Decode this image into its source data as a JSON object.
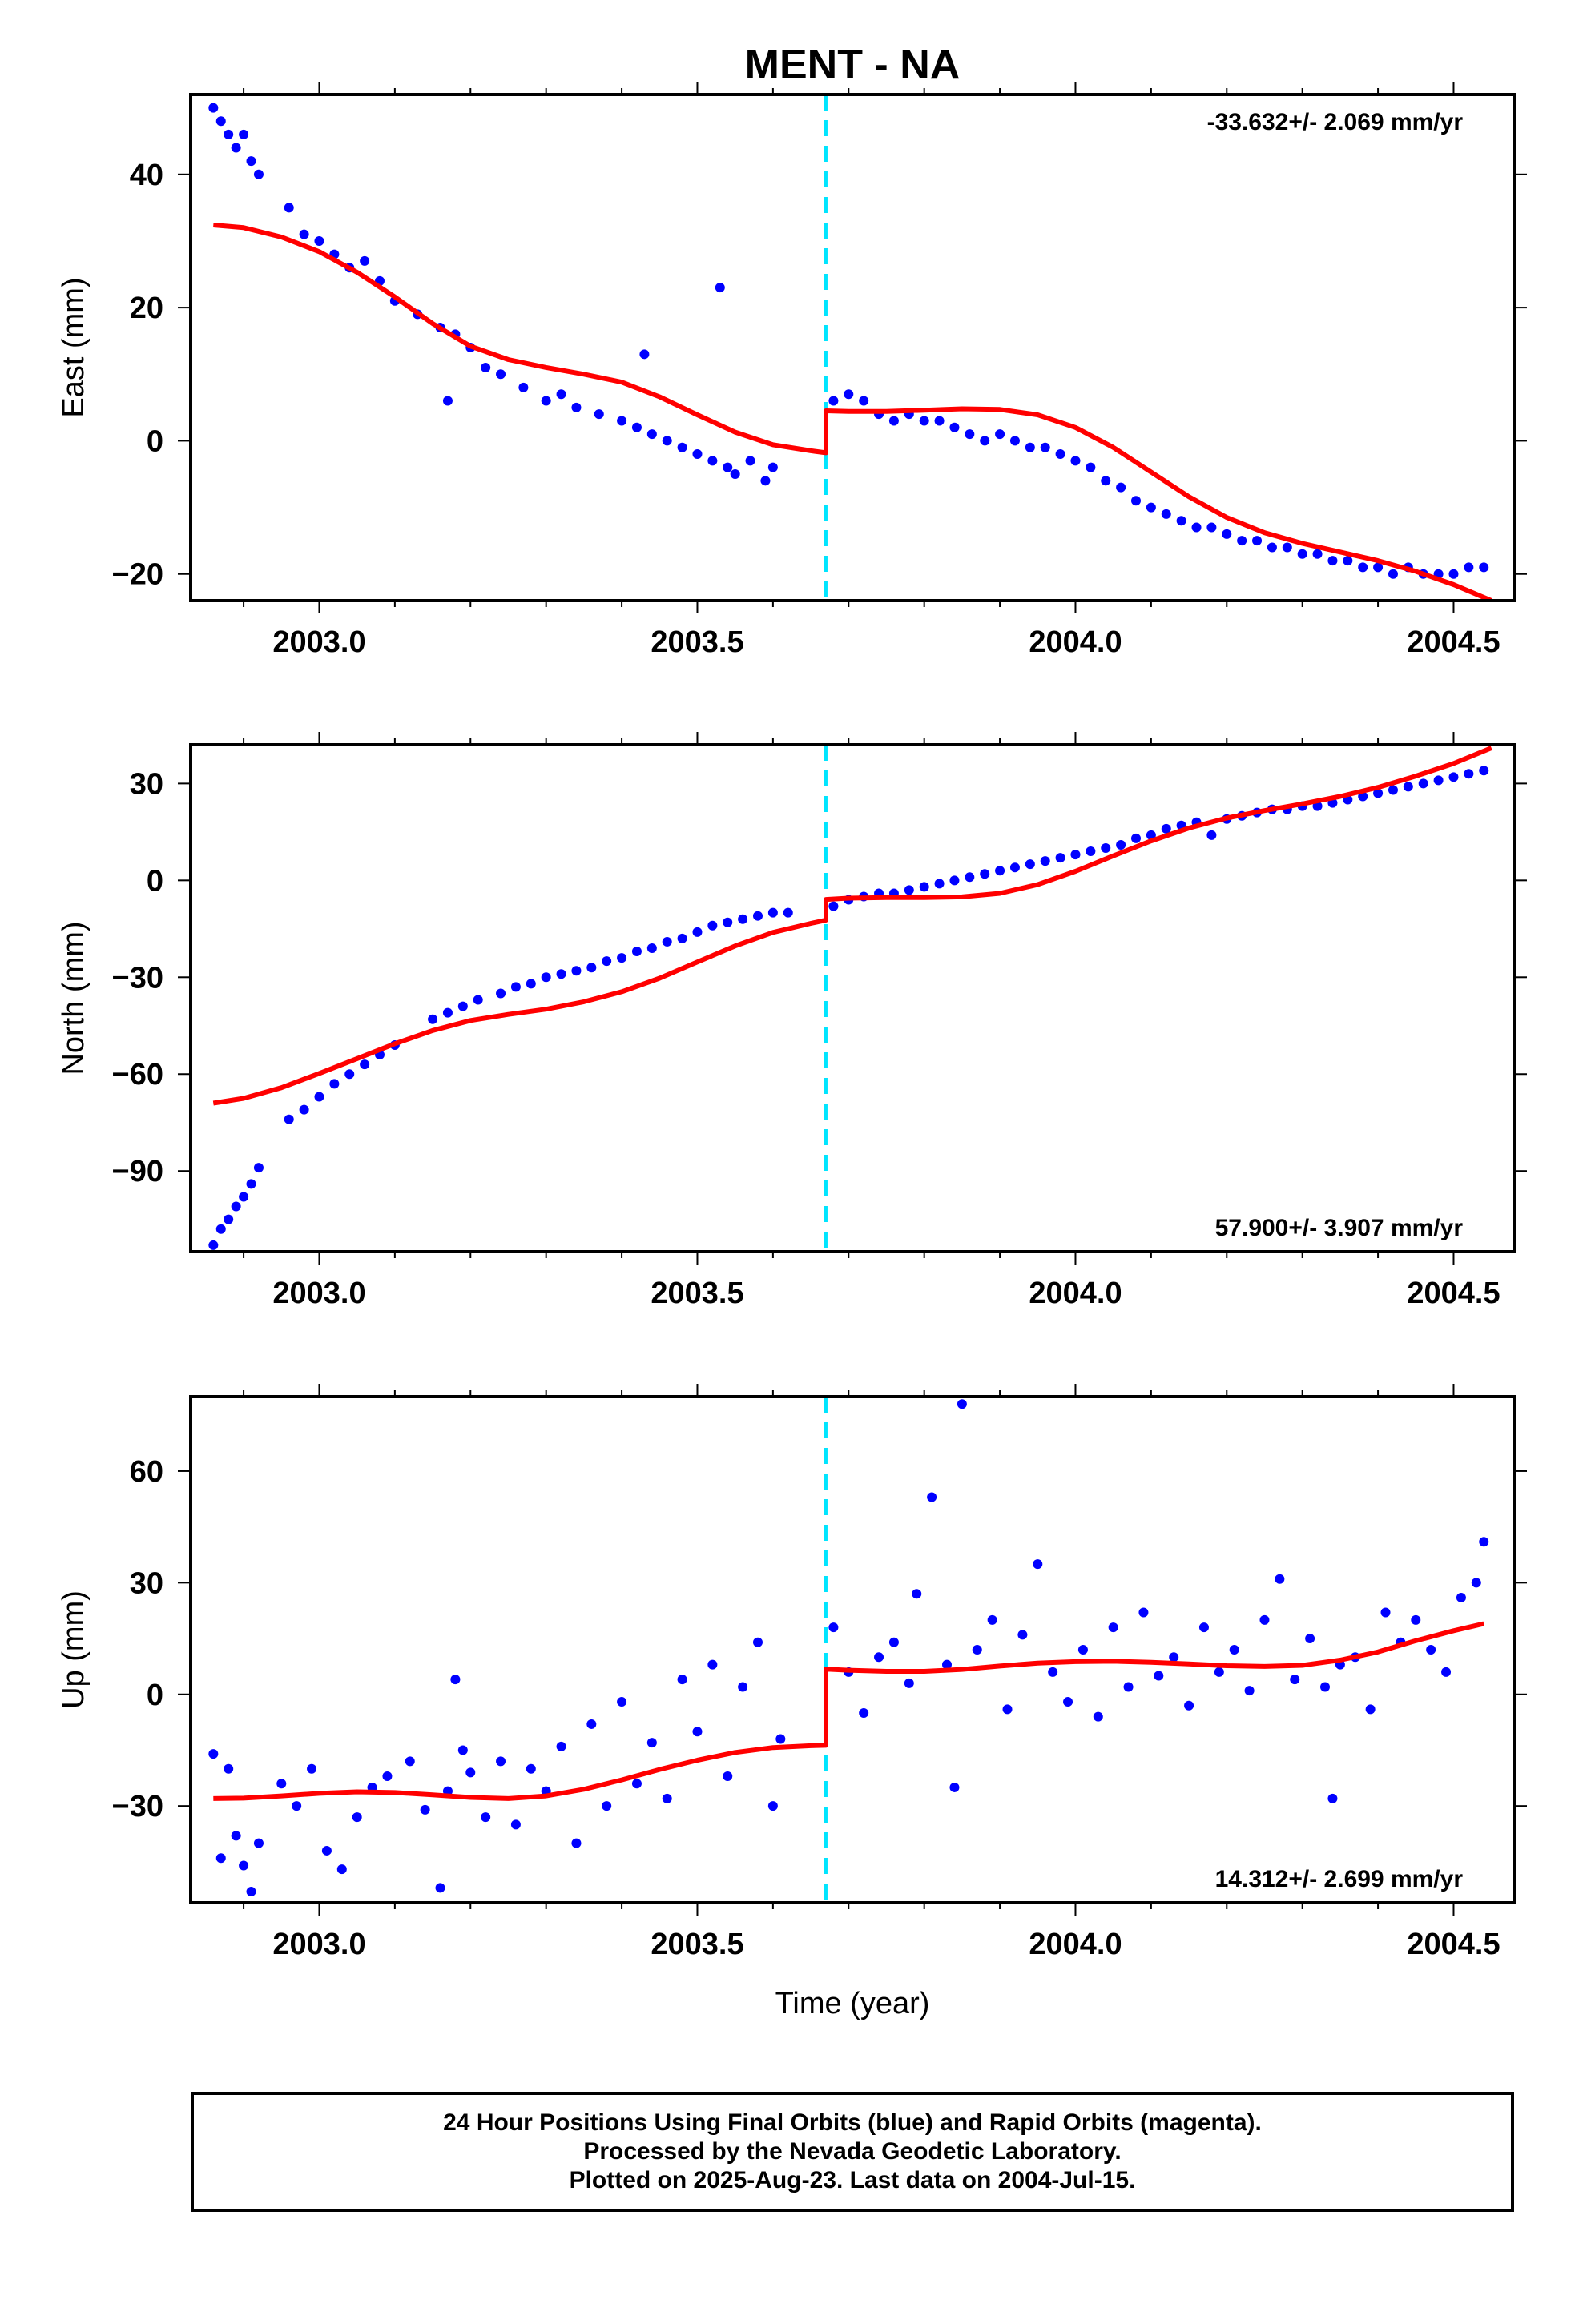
{
  "title": "MENT - NA",
  "xlabel": "Time (year)",
  "colors": {
    "final_orbits": "#0000ff",
    "model_fit": "#ff0000",
    "offset_line": "#00e5ff",
    "frame": "#000000"
  },
  "footer": {
    "line1": "24 Hour Positions Using Final Orbits (blue) and Rapid Orbits (magenta).",
    "line2": "Processed by the Nevada Geodetic Laboratory.",
    "line3": "Plotted on 2025-Aug-23. Last data on 2004-Jul-15."
  },
  "chart_data": [
    {
      "type": "scatter",
      "panel": "east",
      "ylabel": "East (mm)",
      "rate_label": "-33.632+/- 2.069 mm/yr",
      "rate_label_position": "top-right",
      "xlim": [
        2002.83,
        2004.58
      ],
      "ylim": [
        -24,
        52
      ],
      "xticks": [
        2003.0,
        2003.5,
        2004.0,
        2004.5
      ],
      "xtick_labels": [
        "2003.0",
        "2003.5",
        "2004.0",
        "2004.5"
      ],
      "yticks": [
        -20,
        0,
        20,
        40
      ],
      "ytick_labels": [
        "−20",
        "0",
        "20",
        "40"
      ],
      "offset_epoch": 2003.67,
      "series": [
        {
          "style": "points",
          "x": [
            2002.86,
            2002.87,
            2002.88,
            2002.89,
            2002.9,
            2002.91,
            2002.92,
            2002.96,
            2002.98,
            2003.0,
            2003.02,
            2003.04,
            2003.06,
            2003.08,
            2003.1,
            2003.13,
            2003.16,
            2003.18,
            2003.2,
            2003.22,
            2003.24,
            2003.27,
            2003.3,
            2003.32,
            2003.34,
            2003.37,
            2003.4,
            2003.42,
            2003.44,
            2003.46,
            2003.48,
            2003.5,
            2003.52,
            2003.54,
            2003.55,
            2003.57,
            2003.59,
            2003.6,
            2003.17,
            2003.43,
            2003.53,
            2003.68,
            2003.7,
            2003.72,
            2003.74,
            2003.76,
            2003.78,
            2003.8,
            2003.82,
            2003.84,
            2003.86,
            2003.88,
            2003.9,
            2003.92,
            2003.94,
            2003.96,
            2003.98,
            2004.0,
            2004.02,
            2004.04,
            2004.06,
            2004.08,
            2004.1,
            2004.12,
            2004.14,
            2004.16,
            2004.18,
            2004.2,
            2004.22,
            2004.24,
            2004.26,
            2004.28,
            2004.3,
            2004.32,
            2004.34,
            2004.36,
            2004.38,
            2004.4,
            2004.42,
            2004.44,
            2004.46,
            2004.48,
            2004.5,
            2004.52,
            2004.54
          ],
          "y": [
            50,
            48,
            46,
            44,
            46,
            42,
            40,
            35,
            31,
            30,
            28,
            26,
            27,
            24,
            21,
            19,
            17,
            16,
            14,
            11,
            10,
            8,
            6,
            7,
            5,
            4,
            3,
            2,
            1,
            0,
            -1,
            -2,
            -3,
            -4,
            -5,
            -3,
            -6,
            -4,
            6,
            13,
            23,
            6,
            7,
            6,
            4,
            3,
            4,
            3,
            3,
            2,
            1,
            0,
            1,
            0,
            -1,
            -1,
            -2,
            -3,
            -4,
            -6,
            -7,
            -9,
            -10,
            -11,
            -12,
            -13,
            -13,
            -14,
            -15,
            -15,
            -16,
            -16,
            -17,
            -17,
            -18,
            -18,
            -19,
            -19,
            -20,
            -19,
            -20,
            -20,
            -20,
            -19,
            -19
          ]
        },
        {
          "style": "line",
          "x": [
            2002.86,
            2002.9,
            2002.95,
            2003.0,
            2003.05,
            2003.1,
            2003.15,
            2003.2,
            2003.25,
            2003.3,
            2003.35,
            2003.4,
            2003.45,
            2003.5,
            2003.55,
            2003.6,
            2003.65,
            2003.67,
            2003.67,
            2003.7,
            2003.75,
            2003.8,
            2003.85,
            2003.9,
            2003.95,
            2004.0,
            2004.05,
            2004.1,
            2004.15,
            2004.2,
            2004.25,
            2004.3,
            2004.35,
            2004.4,
            2004.45,
            2004.5,
            2004.55
          ],
          "y": [
            32.4,
            32.0,
            30.6,
            28.4,
            25.3,
            21.6,
            17.6,
            14.2,
            12.2,
            11.0,
            10.0,
            8.8,
            6.6,
            3.9,
            1.3,
            -0.6,
            -1.5,
            -1.8,
            4.5,
            4.4,
            4.4,
            4.6,
            4.8,
            4.7,
            3.9,
            2.0,
            -1.0,
            -4.7,
            -8.4,
            -11.5,
            -13.8,
            -15.4,
            -16.7,
            -18.0,
            -19.6,
            -21.6,
            -24.0
          ]
        }
      ]
    },
    {
      "type": "scatter",
      "panel": "north",
      "ylabel": "North (mm)",
      "rate_label": "57.900+/- 3.907 mm/yr",
      "rate_label_position": "bottom-right",
      "xlim": [
        2002.83,
        2004.58
      ],
      "ylim": [
        -115,
        42
      ],
      "xticks": [
        2003.0,
        2003.5,
        2004.0,
        2004.5
      ],
      "xtick_labels": [
        "2003.0",
        "2003.5",
        "2004.0",
        "2004.5"
      ],
      "yticks": [
        -90,
        -60,
        -30,
        0,
        30
      ],
      "ytick_labels": [
        "−90",
        "−60",
        "−30",
        "0",
        "30"
      ],
      "offset_epoch": 2003.67,
      "series": [
        {
          "style": "points",
          "x": [
            2002.86,
            2002.87,
            2002.88,
            2002.89,
            2002.9,
            2002.91,
            2002.92,
            2002.96,
            2002.98,
            2003.0,
            2003.02,
            2003.04,
            2003.06,
            2003.08,
            2003.1,
            2003.15,
            2003.17,
            2003.19,
            2003.21,
            2003.24,
            2003.26,
            2003.28,
            2003.3,
            2003.32,
            2003.34,
            2003.36,
            2003.38,
            2003.4,
            2003.42,
            2003.44,
            2003.46,
            2003.48,
            2003.5,
            2003.52,
            2003.54,
            2003.56,
            2003.58,
            2003.6,
            2003.62,
            2003.68,
            2003.7,
            2003.72,
            2003.74,
            2003.76,
            2003.78,
            2003.8,
            2003.82,
            2003.84,
            2003.86,
            2003.88,
            2003.9,
            2003.92,
            2003.94,
            2003.96,
            2003.98,
            2004.0,
            2004.02,
            2004.04,
            2004.06,
            2004.08,
            2004.1,
            2004.12,
            2004.14,
            2004.16,
            2004.18,
            2004.2,
            2004.22,
            2004.24,
            2004.26,
            2004.28,
            2004.3,
            2004.32,
            2004.34,
            2004.36,
            2004.38,
            2004.4,
            2004.42,
            2004.44,
            2004.46,
            2004.48,
            2004.5,
            2004.52,
            2004.54
          ],
          "y": [
            -113,
            -108,
            -105,
            -101,
            -98,
            -94,
            -89,
            -74,
            -71,
            -67,
            -63,
            -60,
            -57,
            -54,
            -51,
            -43,
            -41,
            -39,
            -37,
            -35,
            -33,
            -32,
            -30,
            -29,
            -28,
            -27,
            -25,
            -24,
            -22,
            -21,
            -19,
            -18,
            -16,
            -14,
            -13,
            -12,
            -11,
            -10,
            -10,
            -8,
            -6,
            -5,
            -4,
            -4,
            -3,
            -2,
            -1,
            0,
            1,
            2,
            3,
            4,
            5,
            6,
            7,
            8,
            9,
            10,
            11,
            13,
            14,
            16,
            17,
            18,
            14,
            19,
            20,
            21,
            22,
            22,
            23,
            23,
            24,
            25,
            26,
            27,
            28,
            29,
            30,
            31,
            32,
            33,
            34
          ]
        },
        {
          "style": "line",
          "x": [
            2002.86,
            2002.9,
            2002.95,
            2003.0,
            2003.05,
            2003.1,
            2003.15,
            2003.2,
            2003.25,
            2003.3,
            2003.35,
            2003.4,
            2003.45,
            2003.5,
            2003.55,
            2003.6,
            2003.65,
            2003.67,
            2003.67,
            2003.7,
            2003.75,
            2003.8,
            2003.85,
            2003.9,
            2003.95,
            2004.0,
            2004.05,
            2004.1,
            2004.15,
            2004.2,
            2004.25,
            2004.3,
            2004.35,
            2004.4,
            2004.45,
            2004.5,
            2004.55
          ],
          "y": [
            -69.0,
            -67.5,
            -64.2,
            -59.8,
            -55.2,
            -50.6,
            -46.5,
            -43.4,
            -41.5,
            -39.9,
            -37.6,
            -34.5,
            -30.3,
            -25.3,
            -20.3,
            -16.1,
            -13.3,
            -12.3,
            -5.9,
            -5.5,
            -5.3,
            -5.3,
            -5.1,
            -4.0,
            -1.3,
            2.8,
            7.6,
            12.2,
            16.2,
            19.3,
            21.6,
            23.7,
            26.0,
            28.8,
            32.3,
            36.2,
            41.0
          ]
        }
      ]
    },
    {
      "type": "scatter",
      "panel": "up",
      "ylabel": "Up (mm)",
      "rate_label": "14.312+/- 2.699 mm/yr",
      "rate_label_position": "bottom-right",
      "xlim": [
        2002.83,
        2004.58
      ],
      "ylim": [
        -56,
        80
      ],
      "xticks": [
        2003.0,
        2003.5,
        2004.0,
        2004.5
      ],
      "xtick_labels": [
        "2003.0",
        "2003.5",
        "2004.0",
        "2004.5"
      ],
      "yticks": [
        -30,
        0,
        30,
        60
      ],
      "ytick_labels": [
        "−30",
        "0",
        "30",
        "60"
      ],
      "offset_epoch": 2003.67,
      "series": [
        {
          "style": "points",
          "x": [
            2002.86,
            2002.87,
            2002.88,
            2002.89,
            2002.9,
            2002.91,
            2002.92,
            2002.95,
            2002.97,
            2002.99,
            2003.01,
            2003.03,
            2003.05,
            2003.07,
            2003.09,
            2003.12,
            2003.14,
            2003.16,
            2003.17,
            2003.18,
            2003.19,
            2003.2,
            2003.22,
            2003.24,
            2003.26,
            2003.28,
            2003.3,
            2003.32,
            2003.34,
            2003.36,
            2003.38,
            2003.4,
            2003.42,
            2003.44,
            2003.46,
            2003.48,
            2003.5,
            2003.52,
            2003.54,
            2003.56,
            2003.58,
            2003.6,
            2003.61,
            2003.68,
            2003.7,
            2003.72,
            2003.74,
            2003.76,
            2003.78,
            2003.79,
            2003.81,
            2003.83,
            2003.84,
            2003.85,
            2003.87,
            2003.89,
            2003.91,
            2003.93,
            2003.95,
            2003.97,
            2003.99,
            2004.01,
            2004.03,
            2004.05,
            2004.07,
            2004.09,
            2004.11,
            2004.13,
            2004.15,
            2004.17,
            2004.19,
            2004.21,
            2004.23,
            2004.25,
            2004.27,
            2004.29,
            2004.31,
            2004.33,
            2004.34,
            2004.35,
            2004.37,
            2004.39,
            2004.41,
            2004.43,
            2004.45,
            2004.47,
            2004.49,
            2004.51,
            2004.53,
            2004.54
          ],
          "y": [
            -16,
            -44,
            -20,
            -38,
            -46,
            -53,
            -40,
            -24,
            -30,
            -20,
            -42,
            -47,
            -33,
            -25,
            -22,
            -18,
            -31,
            -52,
            -26,
            4,
            -15,
            -21,
            -33,
            -18,
            -35,
            -20,
            -26,
            -14,
            -40,
            -8,
            -30,
            -2,
            -24,
            -13,
            -28,
            4,
            -10,
            8,
            -22,
            2,
            14,
            -30,
            -12,
            18,
            6,
            -5,
            10,
            14,
            3,
            27,
            53,
            8,
            -25,
            78,
            12,
            20,
            -4,
            16,
            35,
            6,
            -2,
            12,
            -6,
            18,
            2,
            22,
            5,
            10,
            -3,
            18,
            6,
            12,
            1,
            20,
            31,
            4,
            15,
            2,
            -28,
            8,
            10,
            -4,
            22,
            14,
            20,
            12,
            6,
            26,
            30,
            41
          ]
        },
        {
          "style": "line",
          "x": [
            2002.86,
            2002.9,
            2002.95,
            2003.0,
            2003.05,
            2003.1,
            2003.15,
            2003.2,
            2003.25,
            2003.3,
            2003.35,
            2003.4,
            2003.45,
            2003.5,
            2003.55,
            2003.6,
            2003.65,
            2003.67,
            2003.67,
            2003.7,
            2003.75,
            2003.8,
            2003.85,
            2003.9,
            2003.95,
            2004.0,
            2004.05,
            2004.1,
            2004.15,
            2004.2,
            2004.25,
            2004.3,
            2004.35,
            2004.4,
            2004.45,
            2004.5,
            2004.54
          ],
          "y": [
            -28.0,
            -27.9,
            -27.3,
            -26.6,
            -26.2,
            -26.4,
            -27.0,
            -27.7,
            -28.0,
            -27.3,
            -25.5,
            -23.0,
            -20.2,
            -17.7,
            -15.6,
            -14.3,
            -13.8,
            -13.7,
            6.8,
            6.5,
            6.2,
            6.2,
            6.7,
            7.6,
            8.4,
            8.8,
            8.9,
            8.6,
            8.2,
            7.7,
            7.5,
            7.8,
            9.2,
            11.4,
            14.4,
            17.1,
            19.0
          ]
        }
      ]
    }
  ]
}
